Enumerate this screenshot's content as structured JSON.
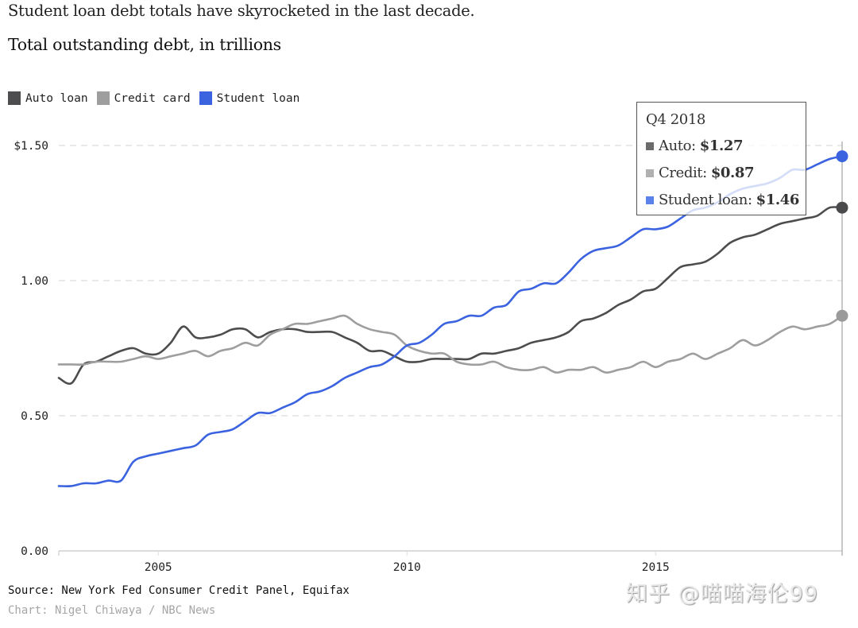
{
  "headline": "Student loan debt totals have skyrocketed in the last decade.",
  "subtitle": "Total outstanding debt, in trillions",
  "legend": [
    {
      "label": "Auto loan",
      "color": "#4d4d4f"
    },
    {
      "label": "Credit card",
      "color": "#9e9e9e"
    },
    {
      "label": "Student loan",
      "color": "#3b63e0"
    }
  ],
  "tooltip": {
    "title": "Q4 2018",
    "rows": [
      {
        "label": "Auto:",
        "value": "$1.27",
        "color": "#6b6b6b"
      },
      {
        "label": "Credit:",
        "value": "$0.87",
        "color": "#b0b0b0"
      },
      {
        "label": "Student loan:",
        "value": "$1.46",
        "color": "#5b82ea"
      }
    ]
  },
  "source": "Source: New York Fed Consumer Credit Panel, Equifax",
  "credit": "Chart: Nigel Chiwaya / NBC News",
  "watermark": "知乎 @喵喵海伦99",
  "chart_data": {
    "type": "line",
    "title": "Total outstanding debt, in trillions",
    "xlabel": "",
    "ylabel": "",
    "xlim": [
      2003.0,
      2018.75
    ],
    "ylim": [
      0,
      1.5
    ],
    "grid": true,
    "legend_position": "top-left",
    "y_ticks": [
      {
        "value": 0,
        "label": "0.00"
      },
      {
        "value": 0.5,
        "label": "0.50"
      },
      {
        "value": 1.0,
        "label": "1.00"
      },
      {
        "value": 1.5,
        "label": "$1.50"
      }
    ],
    "x_ticks": [
      {
        "value": 2005,
        "label": "2005"
      },
      {
        "value": 2010,
        "label": "2010"
      },
      {
        "value": 2015,
        "label": "2015"
      }
    ],
    "highlight": {
      "x": 2018.75,
      "label": "Q4 2018"
    },
    "series": [
      {
        "name": "Auto loan",
        "color": "#4d4d4f",
        "x": [
          2003.0,
          2003.25,
          2003.5,
          2003.75,
          2004.0,
          2004.25,
          2004.5,
          2004.75,
          2005.0,
          2005.25,
          2005.5,
          2005.75,
          2006.0,
          2006.25,
          2006.5,
          2006.75,
          2007.0,
          2007.25,
          2007.5,
          2007.75,
          2008.0,
          2008.25,
          2008.5,
          2008.75,
          2009.0,
          2009.25,
          2009.5,
          2009.75,
          2010.0,
          2010.25,
          2010.5,
          2010.75,
          2011.0,
          2011.25,
          2011.5,
          2011.75,
          2012.0,
          2012.25,
          2012.5,
          2012.75,
          2013.0,
          2013.25,
          2013.5,
          2013.75,
          2014.0,
          2014.25,
          2014.5,
          2014.75,
          2015.0,
          2015.25,
          2015.5,
          2015.75,
          2016.0,
          2016.25,
          2016.5,
          2016.75,
          2017.0,
          2017.25,
          2017.5,
          2017.75,
          2018.0,
          2018.25,
          2018.5,
          2018.75
        ],
        "values": [
          0.64,
          0.62,
          0.69,
          0.7,
          0.72,
          0.74,
          0.75,
          0.73,
          0.73,
          0.77,
          0.83,
          0.79,
          0.79,
          0.8,
          0.82,
          0.82,
          0.79,
          0.81,
          0.82,
          0.82,
          0.81,
          0.81,
          0.81,
          0.79,
          0.77,
          0.74,
          0.74,
          0.72,
          0.7,
          0.7,
          0.71,
          0.71,
          0.71,
          0.71,
          0.73,
          0.73,
          0.74,
          0.75,
          0.77,
          0.78,
          0.79,
          0.81,
          0.85,
          0.86,
          0.88,
          0.91,
          0.93,
          0.96,
          0.97,
          1.01,
          1.05,
          1.06,
          1.07,
          1.1,
          1.14,
          1.16,
          1.17,
          1.19,
          1.21,
          1.22,
          1.23,
          1.24,
          1.27,
          1.27
        ]
      },
      {
        "name": "Credit card",
        "color": "#9e9e9e",
        "x": [
          2003.0,
          2003.25,
          2003.5,
          2003.75,
          2004.0,
          2004.25,
          2004.5,
          2004.75,
          2005.0,
          2005.25,
          2005.5,
          2005.75,
          2006.0,
          2006.25,
          2006.5,
          2006.75,
          2007.0,
          2007.25,
          2007.5,
          2007.75,
          2008.0,
          2008.25,
          2008.5,
          2008.75,
          2009.0,
          2009.25,
          2009.5,
          2009.75,
          2010.0,
          2010.25,
          2010.5,
          2010.75,
          2011.0,
          2011.25,
          2011.5,
          2011.75,
          2012.0,
          2012.25,
          2012.5,
          2012.75,
          2013.0,
          2013.25,
          2013.5,
          2013.75,
          2014.0,
          2014.25,
          2014.5,
          2014.75,
          2015.0,
          2015.25,
          2015.5,
          2015.75,
          2016.0,
          2016.25,
          2016.5,
          2016.75,
          2017.0,
          2017.25,
          2017.5,
          2017.75,
          2018.0,
          2018.25,
          2018.5,
          2018.75
        ],
        "values": [
          0.69,
          0.69,
          0.69,
          0.7,
          0.7,
          0.7,
          0.71,
          0.72,
          0.71,
          0.72,
          0.73,
          0.74,
          0.72,
          0.74,
          0.75,
          0.77,
          0.76,
          0.8,
          0.82,
          0.84,
          0.84,
          0.85,
          0.86,
          0.87,
          0.84,
          0.82,
          0.81,
          0.8,
          0.76,
          0.74,
          0.73,
          0.73,
          0.7,
          0.69,
          0.69,
          0.7,
          0.68,
          0.67,
          0.67,
          0.68,
          0.66,
          0.67,
          0.67,
          0.68,
          0.66,
          0.67,
          0.68,
          0.7,
          0.68,
          0.7,
          0.71,
          0.73,
          0.71,
          0.73,
          0.75,
          0.78,
          0.76,
          0.78,
          0.81,
          0.83,
          0.82,
          0.83,
          0.84,
          0.87
        ]
      },
      {
        "name": "Student loan",
        "color": "#3b63e0",
        "x": [
          2003.0,
          2003.25,
          2003.5,
          2003.75,
          2004.0,
          2004.25,
          2004.5,
          2004.75,
          2005.0,
          2005.25,
          2005.5,
          2005.75,
          2006.0,
          2006.25,
          2006.5,
          2006.75,
          2007.0,
          2007.25,
          2007.5,
          2007.75,
          2008.0,
          2008.25,
          2008.5,
          2008.75,
          2009.0,
          2009.25,
          2009.5,
          2009.75,
          2010.0,
          2010.25,
          2010.5,
          2010.75,
          2011.0,
          2011.25,
          2011.5,
          2011.75,
          2012.0,
          2012.25,
          2012.5,
          2012.75,
          2013.0,
          2013.25,
          2013.5,
          2013.75,
          2014.0,
          2014.25,
          2014.5,
          2014.75,
          2015.0,
          2015.25,
          2015.5,
          2015.75,
          2016.0,
          2016.25,
          2016.5,
          2016.75,
          2017.0,
          2017.25,
          2017.5,
          2017.75,
          2018.0,
          2018.25,
          2018.5,
          2018.75
        ],
        "values": [
          0.24,
          0.24,
          0.25,
          0.25,
          0.26,
          0.26,
          0.33,
          0.35,
          0.36,
          0.37,
          0.38,
          0.39,
          0.43,
          0.44,
          0.45,
          0.48,
          0.51,
          0.51,
          0.53,
          0.55,
          0.58,
          0.59,
          0.61,
          0.64,
          0.66,
          0.68,
          0.69,
          0.72,
          0.76,
          0.77,
          0.8,
          0.84,
          0.85,
          0.87,
          0.87,
          0.9,
          0.91,
          0.96,
          0.97,
          0.99,
          0.99,
          1.03,
          1.08,
          1.11,
          1.12,
          1.13,
          1.16,
          1.19,
          1.19,
          1.2,
          1.23,
          1.26,
          1.27,
          1.29,
          1.32,
          1.34,
          1.35,
          1.36,
          1.38,
          1.41,
          1.41,
          1.43,
          1.45,
          1.46
        ]
      }
    ]
  }
}
